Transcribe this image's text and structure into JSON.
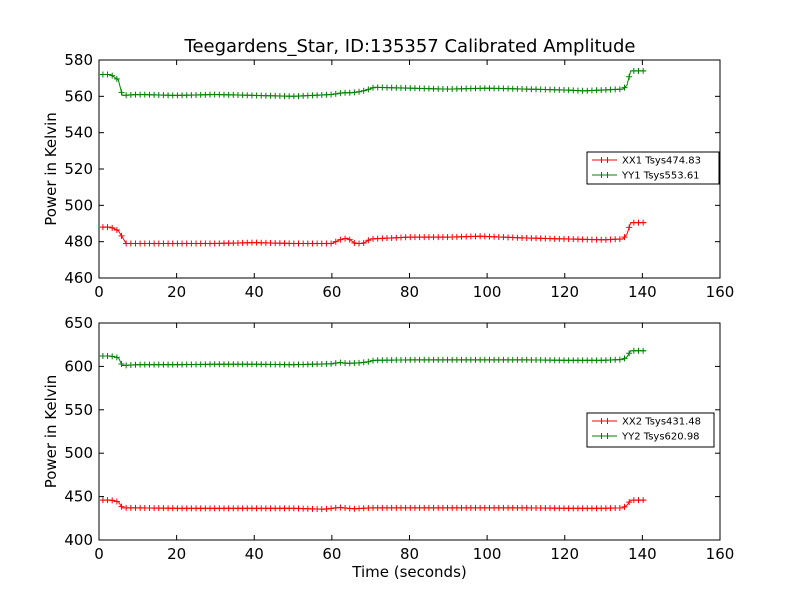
{
  "figure": {
    "title": "Teegardens_Star, ID:135357 Calibrated Amplitude"
  },
  "chart_data": [
    {
      "type": "line",
      "title": "Teegardens_Star, ID:135357 Calibrated Amplitude",
      "xlabel": "",
      "ylabel": "Power in Kelvin",
      "xlim": [
        0,
        160
      ],
      "ylim": [
        460,
        580
      ],
      "xticks": [
        0,
        20,
        40,
        60,
        80,
        100,
        120,
        140,
        160
      ],
      "yticks": [
        460,
        480,
        500,
        520,
        540,
        560,
        580
      ],
      "grid": false,
      "legend_position": "right",
      "series": [
        {
          "name": "XX1 Tsys474.83",
          "color": "#ff0000",
          "marker": "plus",
          "x": [
            1,
            3,
            5,
            7,
            10,
            20,
            30,
            40,
            50,
            60,
            62,
            64,
            66,
            68,
            70,
            80,
            90,
            98,
            110,
            120,
            130,
            135,
            136,
            137,
            139,
            141
          ],
          "y": [
            488,
            488,
            486,
            479,
            479,
            479,
            479,
            479.5,
            479,
            479,
            481,
            482,
            479,
            479,
            481.5,
            482.5,
            482.5,
            483,
            482,
            481.5,
            481,
            481.5,
            484,
            490.5,
            490.5,
            490.5
          ]
        },
        {
          "name": "YY1 Tsys553.61",
          "color": "#008000",
          "marker": "plus",
          "x": [
            1,
            3,
            5,
            6,
            10,
            20,
            30,
            40,
            50,
            60,
            63,
            65,
            67,
            69,
            71,
            80,
            90,
            100,
            110,
            120,
            125,
            130,
            135,
            136,
            137,
            139,
            141
          ],
          "y": [
            572,
            572,
            569,
            560.5,
            561,
            560.5,
            561,
            560.5,
            560,
            561,
            562,
            562,
            562.5,
            563.5,
            565,
            564.5,
            564,
            564.5,
            564,
            563.5,
            563,
            563.5,
            564,
            566,
            574,
            574,
            574
          ]
        }
      ]
    },
    {
      "type": "line",
      "title": "",
      "xlabel": "Time (seconds)",
      "ylabel": "Power in Kelvin",
      "xlim": [
        0,
        160
      ],
      "ylim": [
        400,
        650
      ],
      "xticks": [
        0,
        20,
        40,
        60,
        80,
        100,
        120,
        140,
        160
      ],
      "yticks": [
        400,
        450,
        500,
        550,
        600,
        650
      ],
      "grid": false,
      "legend_position": "right",
      "series": [
        {
          "name": "XX2 Tsys431.48",
          "color": "#ff0000",
          "marker": "plus",
          "x": [
            1,
            3,
            5,
            6,
            10,
            20,
            30,
            40,
            50,
            58,
            62,
            64,
            66,
            70,
            80,
            90,
            100,
            110,
            120,
            130,
            135,
            136,
            137,
            139,
            141
          ],
          "y": [
            446,
            446,
            444,
            437,
            437,
            436.5,
            436.5,
            436.5,
            436.5,
            435.5,
            437.5,
            436.5,
            436,
            437,
            437,
            437,
            437,
            437,
            436.5,
            436.5,
            437,
            440,
            446,
            446,
            446
          ]
        },
        {
          "name": "YY2 Tsys620.98",
          "color": "#008000",
          "marker": "plus",
          "x": [
            1,
            3,
            5,
            6,
            10,
            20,
            30,
            40,
            50,
            60,
            62,
            64,
            67,
            69,
            71,
            80,
            90,
            100,
            110,
            120,
            130,
            135,
            136,
            137,
            139,
            141
          ],
          "y": [
            612,
            612,
            610,
            601,
            602,
            602,
            602.5,
            602.5,
            602,
            603,
            604.5,
            603.5,
            604,
            605,
            607,
            607.5,
            607.5,
            607.5,
            607.5,
            607,
            607,
            608,
            611,
            618,
            618,
            618
          ]
        }
      ]
    }
  ]
}
